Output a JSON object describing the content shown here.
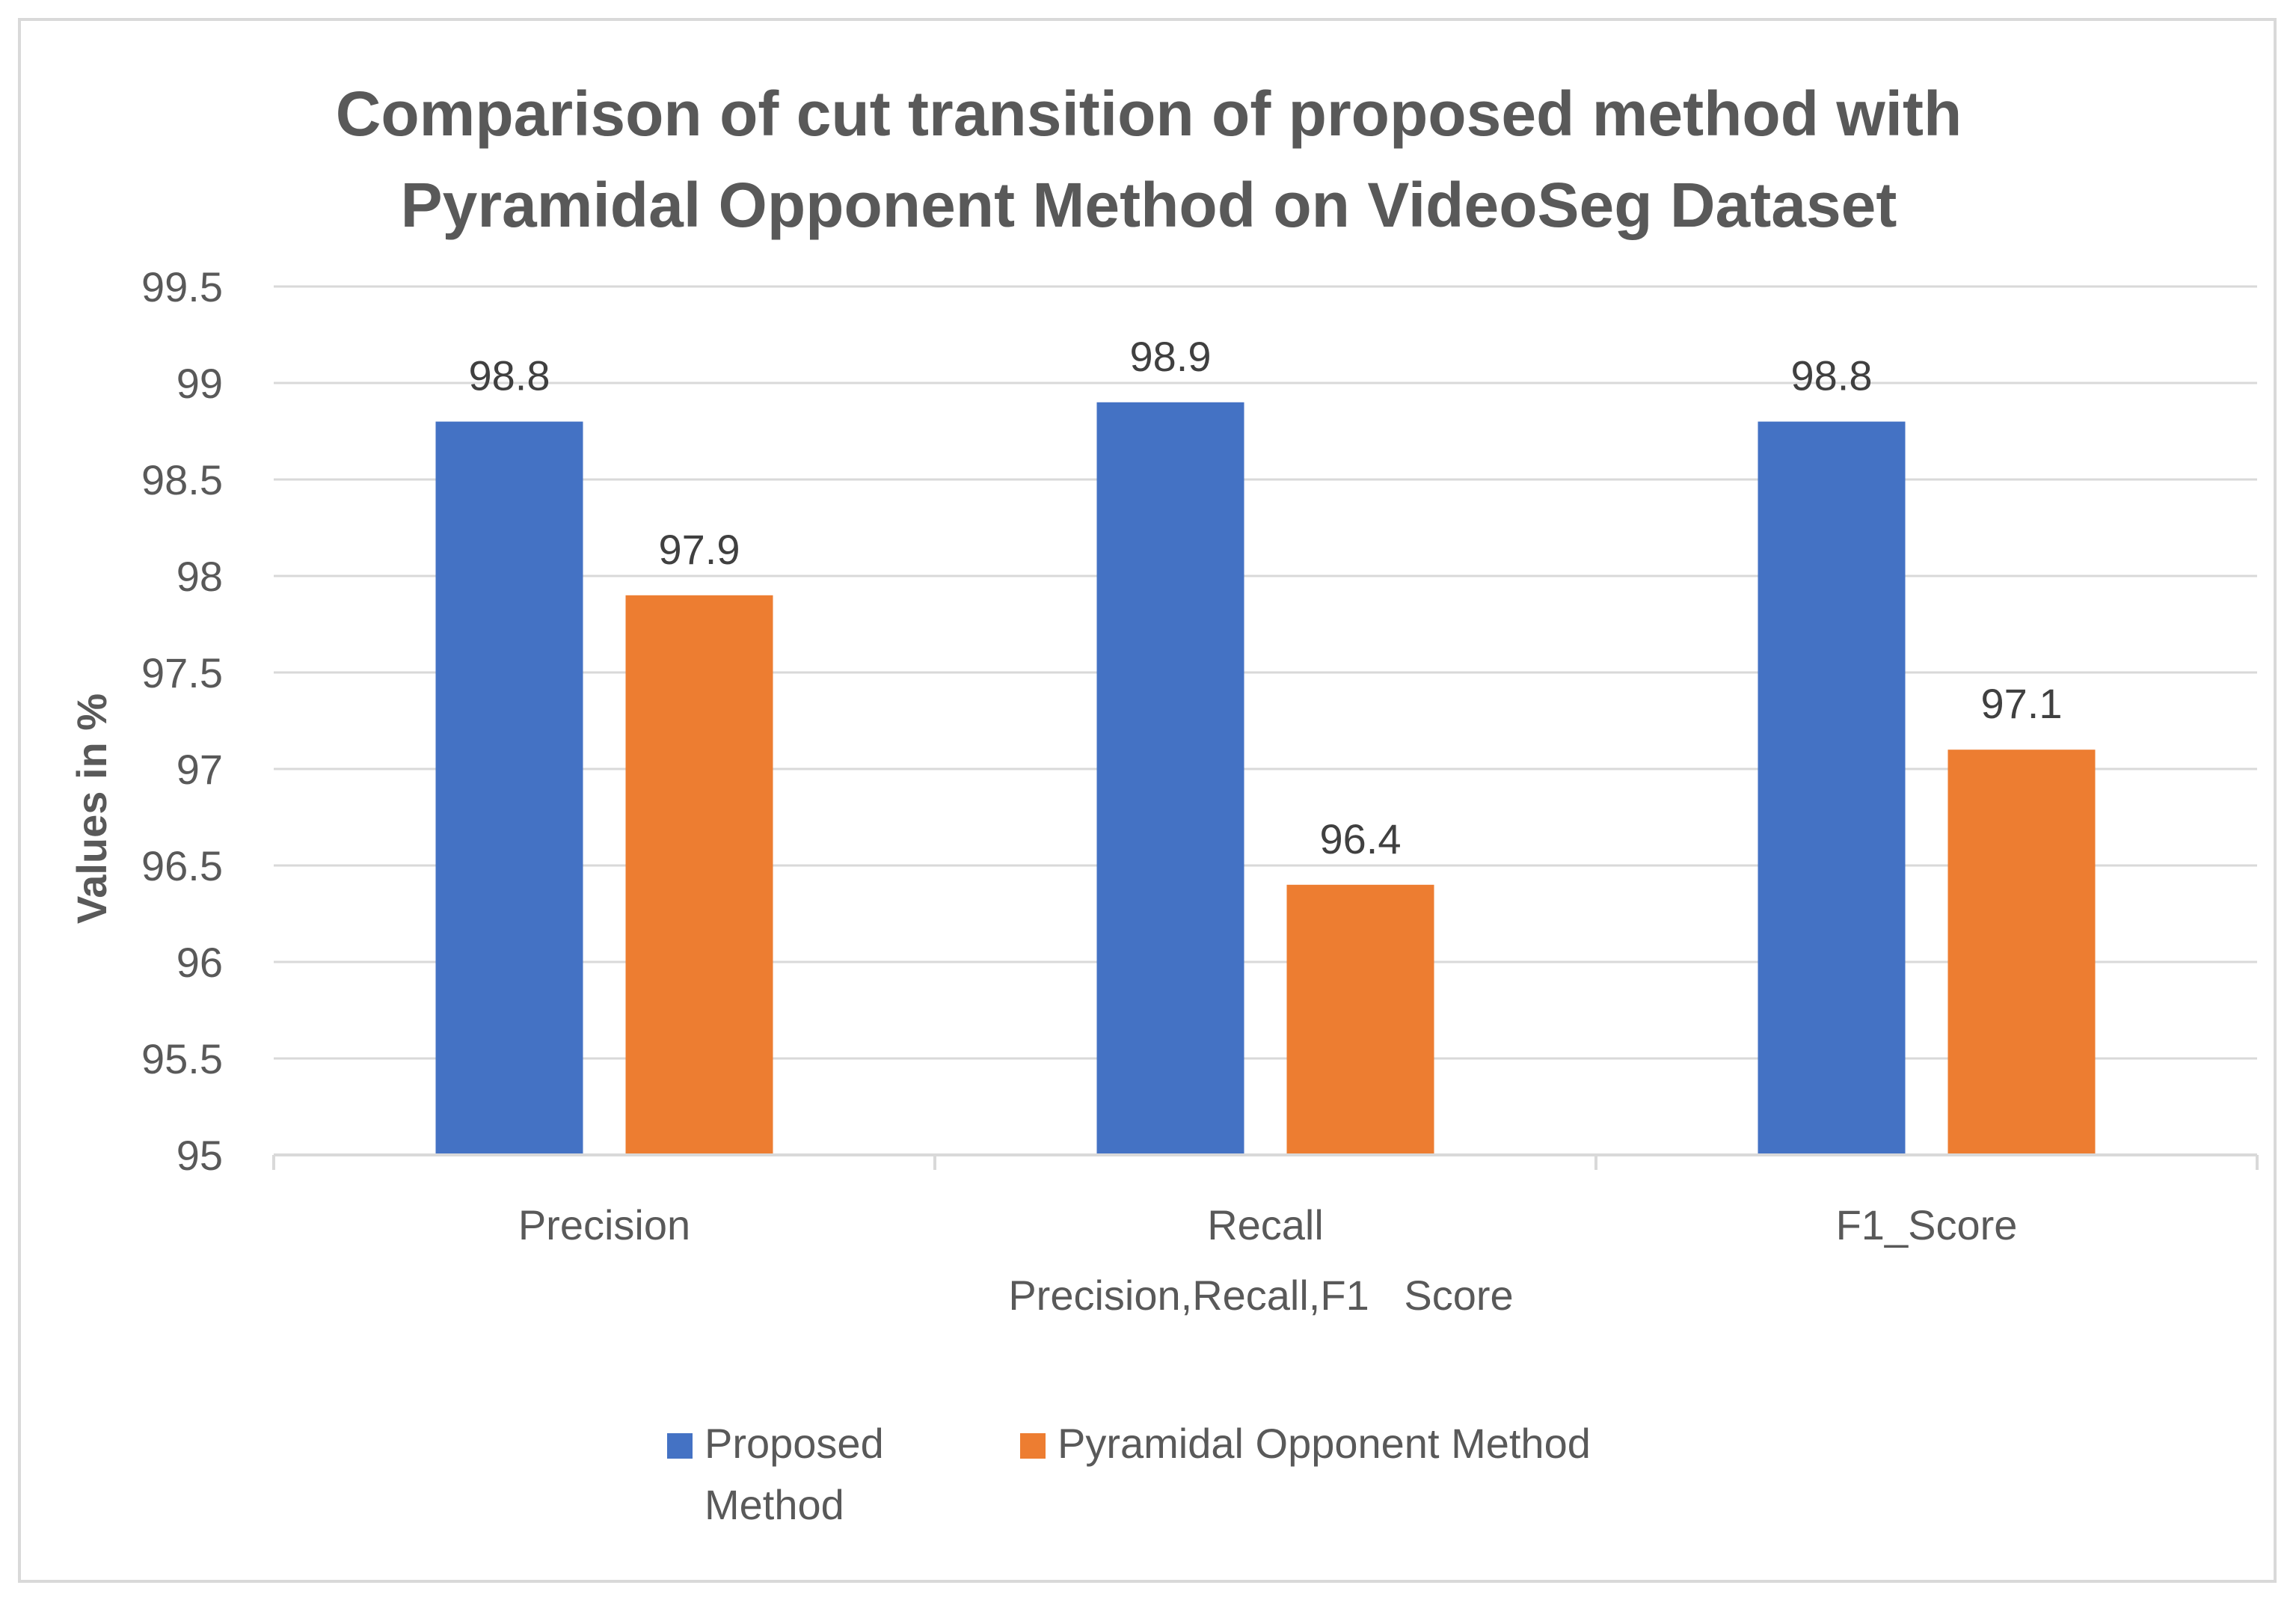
{
  "chart_data": {
    "type": "bar",
    "title": "Comparison of cut transition of proposed method with Pyramidal Opponent Method on VideoSeg Dataset",
    "title_lines": [
      "Comparison of cut transition of proposed method with",
      "Pyramidal Opponent Method on VideoSeg Dataset"
    ],
    "categories": [
      "Precision",
      "Recall",
      "F1_Score"
    ],
    "series": [
      {
        "name": "Proposed Method",
        "legend_lines": [
          "Proposed",
          "Method"
        ],
        "color": "#4472c4",
        "values": [
          98.8,
          98.9,
          98.8
        ]
      },
      {
        "name": "Pyramidal Opponent Method",
        "legend_lines": [
          "Pyramidal Opponent Method"
        ],
        "color": "#ed7d31",
        "values": [
          97.9,
          96.4,
          97.1
        ]
      }
    ],
    "data_labels": [
      [
        "98.8",
        "98.9",
        "98.8"
      ],
      [
        "97.9",
        "96.4",
        "97.1"
      ]
    ],
    "xlabel": "Precision,Recall,F1   Score",
    "ylabel": "Values in %",
    "ylim": [
      95,
      99.5
    ],
    "yticks": [
      95,
      95.5,
      96,
      96.5,
      97,
      97.5,
      98,
      98.5,
      99,
      99.5
    ],
    "ytick_labels": [
      "95",
      "95.5",
      "96",
      "96.5",
      "97",
      "97.5",
      "98",
      "98.5",
      "99",
      "99.5"
    ],
    "grid": true,
    "legend_position": "bottom"
  },
  "colors": {
    "grid": "#d9d9d9",
    "axis": "#d9d9d9",
    "text": "#595959"
  }
}
